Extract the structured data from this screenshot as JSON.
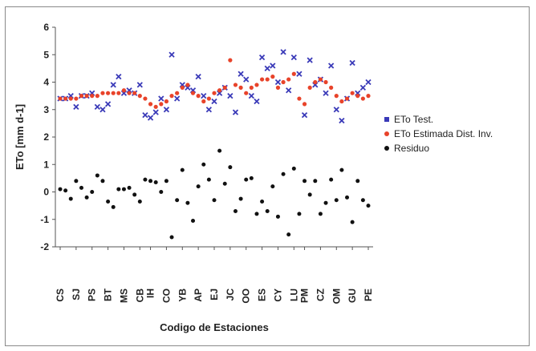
{
  "chart_data": {
    "type": "scatter",
    "xlabel": "Codigo de Estaciones",
    "ylabel": "ETo [mm d-1]",
    "ylim": [
      -2,
      6
    ],
    "yticks": [
      -2,
      -1,
      0,
      1,
      2,
      3,
      4,
      5,
      6
    ],
    "grid": false,
    "legend_position": "right",
    "station_labels": [
      "CS",
      "SJ",
      "PS",
      "BT",
      "MS",
      "CB",
      "IH",
      "CO",
      "YB",
      "AP",
      "EJ",
      "JC",
      "OO",
      "ES",
      "CY",
      "LU",
      "PM",
      "CZ",
      "OM",
      "GU",
      "PE"
    ],
    "series": [
      {
        "name": "ETo Test.",
        "color": "#3a3ab8",
        "marker": "x",
        "values": [
          3.4,
          3.4,
          3.5,
          3.1,
          3.5,
          3.5,
          3.6,
          3.1,
          3.0,
          3.2,
          3.9,
          4.2,
          3.6,
          3.7,
          3.6,
          3.9,
          2.8,
          2.7,
          2.9,
          3.4,
          3.0,
          5.0,
          3.4,
          3.9,
          3.8,
          3.7,
          4.2,
          3.5,
          3.0,
          3.3,
          3.6,
          3.8,
          3.5,
          2.9,
          4.3,
          4.1,
          3.5,
          3.3,
          4.9,
          4.5,
          4.6,
          4.0,
          5.1,
          3.7,
          4.9,
          4.3,
          2.8,
          4.8,
          3.9,
          4.1,
          3.6,
          4.6,
          3.0,
          2.6,
          3.4,
          4.7,
          3.6,
          3.8,
          4.0
        ]
      },
      {
        "name": "ETo Estimada Dist. Inv.",
        "color": "#e8432a",
        "marker": "dot",
        "values": [
          3.4,
          3.4,
          3.4,
          3.4,
          3.5,
          3.5,
          3.5,
          3.5,
          3.6,
          3.6,
          3.6,
          3.6,
          3.7,
          3.6,
          3.6,
          3.5,
          3.4,
          3.2,
          3.1,
          3.2,
          3.3,
          3.5,
          3.6,
          3.8,
          3.9,
          3.6,
          3.5,
          3.3,
          3.4,
          3.6,
          3.7,
          3.8,
          4.8,
          3.9,
          3.8,
          3.6,
          3.8,
          3.9,
          4.1,
          4.1,
          4.2,
          3.8,
          4.0,
          4.1,
          4.3,
          3.4,
          3.2,
          3.8,
          4.0,
          4.1,
          4.0,
          3.8,
          3.5,
          3.3,
          3.4,
          3.6,
          3.5,
          3.4,
          3.5
        ]
      },
      {
        "name": "Residuo",
        "color": "#111111",
        "marker": "dot",
        "values": [
          0.1,
          0.05,
          -0.25,
          0.4,
          0.15,
          -0.2,
          0.0,
          0.6,
          0.4,
          -0.35,
          -0.55,
          0.1,
          0.1,
          0.15,
          -0.1,
          -0.35,
          0.45,
          0.4,
          0.35,
          0.0,
          0.4,
          -1.65,
          -0.3,
          0.8,
          -0.4,
          -1.05,
          0.2,
          1.0,
          0.45,
          -0.3,
          1.5,
          0.3,
          0.9,
          -0.7,
          -0.25,
          0.45,
          0.5,
          -0.8,
          -0.35,
          -0.7,
          0.2,
          -0.9,
          0.65,
          -1.55,
          0.85,
          -0.8,
          0.4,
          -0.1,
          0.4,
          -0.8,
          -0.4,
          0.45,
          -0.3,
          0.8,
          -0.2,
          -1.1,
          0.4,
          -0.3,
          -0.5
        ]
      }
    ]
  }
}
